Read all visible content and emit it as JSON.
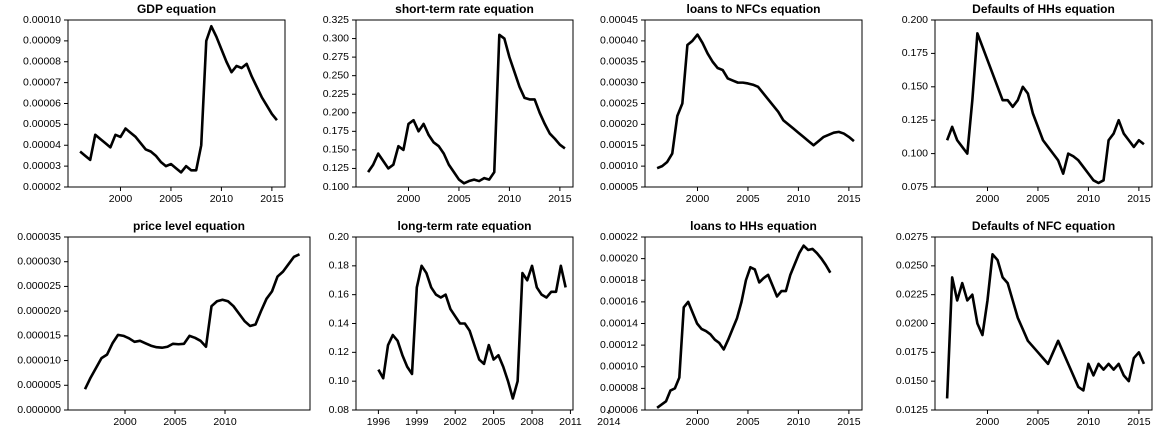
{
  "chart_data": [
    {
      "type": "line",
      "title": "GDP equation",
      "x": [
        1996,
        1996.5,
        1997,
        1997.5,
        1998,
        1998.5,
        1999,
        1999.5,
        2000,
        2000.5,
        2001,
        2001.5,
        2002,
        2002.5,
        2003,
        2003.5,
        2004,
        2004.5,
        2005,
        2005.5,
        2006,
        2006.5,
        2007,
        2007.5,
        2008,
        2008.5,
        2009,
        2009.5,
        2010,
        2010.5,
        2011,
        2011.5,
        2012,
        2012.5,
        2013,
        2013.5,
        2014,
        2014.5,
        2015,
        2015.5
      ],
      "values": [
        3.7e-05,
        3.5e-05,
        3.3e-05,
        4.5e-05,
        4.3e-05,
        4.1e-05,
        3.9e-05,
        4.5e-05,
        4.4e-05,
        4.8e-05,
        4.6e-05,
        4.4e-05,
        4.1e-05,
        3.8e-05,
        3.7e-05,
        3.5e-05,
        3.2e-05,
        3e-05,
        3.1e-05,
        2.9e-05,
        2.7e-05,
        3e-05,
        2.8e-05,
        2.8e-05,
        4e-05,
        9e-05,
        9.7e-05,
        9.2e-05,
        8.6e-05,
        8e-05,
        7.5e-05,
        7.8e-05,
        7.7e-05,
        7.9e-05,
        7.3e-05,
        6.8e-05,
        6.3e-05,
        5.9e-05,
        5.5e-05,
        5.2e-05
      ],
      "color": "#000000",
      "xlim": [
        1994.8,
        2016.3
      ],
      "xticks": [
        2000,
        2005,
        2010,
        2015
      ],
      "ylim": [
        2e-05,
        0.0001
      ],
      "yticks": [
        2e-05,
        3e-05,
        4e-05,
        5e-05,
        6e-05,
        7e-05,
        8e-05,
        9e-05,
        {
          "value": 0.0001,
          "label": "0.00010"
        }
      ]
    },
    {
      "type": "line",
      "title": "short-term rate equation",
      "x": [
        1996,
        1996.5,
        1997,
        1997.5,
        1998,
        1998.5,
        1999,
        1999.5,
        2000,
        2000.5,
        2001,
        2001.5,
        2002,
        2002.5,
        2003,
        2003.5,
        2004,
        2004.5,
        2005,
        2005.5,
        2006,
        2006.5,
        2007,
        2007.5,
        2008,
        2008.5,
        2009,
        2009.5,
        2010,
        2010.5,
        2011,
        2011.5,
        2012,
        2012.5,
        2013,
        2013.5,
        2014,
        2014.5,
        2015,
        2015.5
      ],
      "values": [
        0.12,
        0.13,
        0.145,
        0.135,
        0.125,
        0.13,
        0.155,
        0.15,
        0.185,
        0.19,
        0.175,
        0.185,
        0.17,
        0.16,
        0.155,
        0.145,
        0.13,
        0.12,
        0.11,
        0.105,
        0.108,
        0.11,
        0.108,
        0.112,
        0.11,
        0.12,
        0.305,
        0.3,
        0.275,
        0.255,
        0.235,
        0.22,
        0.218,
        0.218,
        0.2,
        0.185,
        0.172,
        0.165,
        0.157,
        0.152
      ],
      "color": "#000000",
      "xlim": [
        1994.8,
        2016.3
      ],
      "xticks": [
        2000,
        2005,
        2010,
        2015
      ],
      "ylim": [
        0.1,
        0.325
      ],
      "yticks": [
        {
          "value": 0.1,
          "label": "0.100"
        },
        0.125,
        {
          "value": 0.15,
          "label": "0.150"
        },
        0.175,
        {
          "value": 0.2,
          "label": "0.200"
        },
        0.225,
        {
          "value": 0.25,
          "label": "0.250"
        },
        0.275,
        {
          "value": 0.3,
          "label": "0.300"
        },
        0.325
      ]
    },
    {
      "type": "line",
      "title": "loans to NFCs equation",
      "x": [
        1996,
        1996.5,
        1997,
        1997.5,
        1998,
        1998.5,
        1999,
        1999.5,
        2000,
        2000.5,
        2001,
        2001.5,
        2002,
        2002.5,
        2003,
        2003.5,
        2004,
        2004.5,
        2005,
        2005.5,
        2006,
        2006.5,
        2007,
        2007.5,
        2008,
        2008.5,
        2009,
        2009.5,
        2010,
        2010.5,
        2011,
        2011.5,
        2012,
        2012.5,
        2013,
        2013.5,
        2014,
        2014.5,
        2015,
        2015.5
      ],
      "values": [
        9.5e-05,
        0.0001,
        0.00011,
        0.00013,
        0.00022,
        0.00025,
        0.00039,
        0.0004,
        0.000415,
        0.000395,
        0.00037,
        0.00035,
        0.000335,
        0.00033,
        0.00031,
        0.000305,
        0.0003,
        0.0003,
        0.000298,
        0.000295,
        0.00029,
        0.000275,
        0.00026,
        0.000245,
        0.00023,
        0.00021,
        0.0002,
        0.00019,
        0.00018,
        0.00017,
        0.00016,
        0.00015,
        0.00016,
        0.00017,
        0.000175,
        0.00018,
        0.000182,
        0.000178,
        0.00017,
        0.00016
      ],
      "color": "#000000",
      "xlim": [
        1994.8,
        2016.3
      ],
      "xticks": [
        2000,
        2005,
        2010,
        2015
      ],
      "ylim": [
        5e-05,
        0.00045
      ],
      "yticks": [
        5e-05,
        {
          "value": 0.0001,
          "label": "0.00010"
        },
        0.00015,
        {
          "value": 0.0002,
          "label": "0.00020"
        },
        0.00025,
        {
          "value": 0.0003,
          "label": "0.00030"
        },
        0.00035,
        {
          "value": 0.0004,
          "label": "0.00040"
        },
        0.00045
      ]
    },
    {
      "type": "line",
      "title": "Defaults of HHs equation",
      "x": [
        1996,
        1996.5,
        1997,
        1997.5,
        1998,
        1998.5,
        1999,
        1999.5,
        2000,
        2000.5,
        2001,
        2001.5,
        2002,
        2002.5,
        2003,
        2003.5,
        2004,
        2004.5,
        2005,
        2005.5,
        2006,
        2006.5,
        2007,
        2007.5,
        2008,
        2008.5,
        2009,
        2009.5,
        2010,
        2010.5,
        2011,
        2011.5,
        2012,
        2012.5,
        2013,
        2013.5,
        2014,
        2014.5,
        2015,
        2015.5
      ],
      "values": [
        0.11,
        0.12,
        0.11,
        0.105,
        0.1,
        0.14,
        0.19,
        0.18,
        0.17,
        0.16,
        0.15,
        0.14,
        0.14,
        0.135,
        0.14,
        0.15,
        0.145,
        0.13,
        0.12,
        0.11,
        0.105,
        0.1,
        0.095,
        0.085,
        0.1,
        0.098,
        0.095,
        0.09,
        0.085,
        0.08,
        0.078,
        0.08,
        0.11,
        0.115,
        0.125,
        0.115,
        0.11,
        0.105,
        0.11,
        0.107
      ],
      "color": "#000000",
      "xlim": [
        1994.8,
        2016.3
      ],
      "xticks": [
        2000,
        2005,
        2010,
        2015
      ],
      "ylim": [
        0.075,
        0.2
      ],
      "yticks": [
        0.075,
        {
          "value": 0.1,
          "label": "0.100"
        },
        0.125,
        {
          "value": 0.15,
          "label": "0.150"
        },
        0.175,
        {
          "value": 0.2,
          "label": "0.200"
        }
      ]
    },
    {
      "type": "line",
      "title": "price level equation",
      "x": [
        1996,
        1996.55,
        1997.1,
        1997.65,
        1998.2,
        1998.75,
        1999.3,
        1999.85,
        2000.4,
        2000.95,
        2001.5,
        2002.05,
        2002.6,
        2003.15,
        2003.7,
        2004.25,
        2004.8,
        2005.35,
        2005.9,
        2006.45,
        2007,
        2007.55,
        2008.1,
        2008.65,
        2009.2,
        2009.75,
        2010.3,
        2010.85,
        2011.4,
        2011.95,
        2012.5,
        2013.05,
        2013.6,
        2014.15,
        2014.7,
        2015.25,
        2015.8,
        2016.35,
        2016.9,
        2017.45
      ],
      "values": [
        4.2e-06,
        6.5e-06,
        8.5e-06,
        1.05e-05,
        1.12e-05,
        1.35e-05,
        1.52e-05,
        1.5e-05,
        1.45e-05,
        1.38e-05,
        1.4e-05,
        1.35e-05,
        1.3e-05,
        1.27e-05,
        1.26e-05,
        1.28e-05,
        1.34e-05,
        1.33e-05,
        1.34e-05,
        1.5e-05,
        1.46e-05,
        1.4e-05,
        1.28e-05,
        2.1e-05,
        2.2e-05,
        2.23e-05,
        2.2e-05,
        2.1e-05,
        1.95e-05,
        1.8e-05,
        1.7e-05,
        1.73e-05,
        2e-05,
        2.25e-05,
        2.4e-05,
        2.7e-05,
        2.8e-05,
        2.95e-05,
        3.1e-05,
        3.15e-05
      ],
      "color": "#000000",
      "xlim": [
        1994.3,
        2018.5
      ],
      "xticks": [
        2000,
        2005,
        2010
      ],
      "ylim": [
        0,
        3.5e-05
      ],
      "yticks": [
        {
          "value": 0,
          "label": "0.000000"
        },
        5e-06,
        {
          "value": 1e-05,
          "label": "0.000010"
        },
        1.5e-05,
        {
          "value": 2e-05,
          "label": "0.000020"
        },
        2.5e-05,
        {
          "value": 3e-05,
          "label": "0.000030"
        },
        3.5e-05
      ]
    },
    {
      "type": "line",
      "title": "long-term rate equation",
      "x": [
        1996,
        1996.375,
        1996.75,
        1997.125,
        1997.5,
        1997.875,
        1998.25,
        1998.625,
        1999,
        1999.375,
        1999.75,
        2000.125,
        2000.5,
        2000.875,
        2001.25,
        2001.625,
        2002,
        2002.375,
        2002.75,
        2003.125,
        2003.5,
        2003.875,
        2004.25,
        2004.625,
        2005,
        2005.375,
        2005.75,
        2006.125,
        2006.5,
        2006.875,
        2007.25,
        2007.625,
        2008,
        2008.375,
        2008.75,
        2009.125,
        2009.5,
        2009.875,
        2010.25,
        2010.625
      ],
      "values": [
        0.108,
        0.102,
        0.125,
        0.132,
        0.128,
        0.118,
        0.11,
        0.105,
        0.165,
        0.18,
        0.175,
        0.165,
        0.16,
        0.158,
        0.16,
        0.15,
        0.145,
        0.14,
        0.14,
        0.135,
        0.125,
        0.115,
        0.112,
        0.125,
        0.115,
        0.118,
        0.11,
        0.1,
        0.088,
        0.1,
        0.175,
        0.17,
        0.18,
        0.165,
        0.16,
        0.158,
        0.162,
        0.162,
        0.18,
        0.165
      ],
      "color": "#000000",
      "xlim": [
        1994.25,
        2011.2
      ],
      "xticks": [
        1996,
        1999,
        2002,
        2005,
        2008,
        2011,
        2014
      ],
      "ylim": [
        0.08,
        0.2
      ],
      "yticks": [
        0.08,
        {
          "value": 0.1,
          "label": "0.10"
        },
        0.12,
        0.14,
        0.16,
        0.18,
        {
          "value": 0.2,
          "label": "0.20"
        }
      ]
    },
    {
      "type": "line",
      "title": "loans to HHs equation",
      "x": [
        1996,
        1996.44,
        1996.88,
        1997.32,
        1997.76,
        1998.2,
        1998.64,
        1999.08,
        1999.52,
        1999.96,
        2000.4,
        2000.84,
        2001.28,
        2001.72,
        2002.16,
        2002.6,
        2003.04,
        2003.48,
        2003.92,
        2004.36,
        2004.8,
        2005.24,
        2005.68,
        2006.12,
        2006.56,
        2007,
        2007.44,
        2007.88,
        2008.32,
        2008.76,
        2009.2,
        2009.64,
        2010.08,
        2010.52,
        2010.96,
        2011.4,
        2011.84,
        2012.28,
        2012.72,
        2013.16
      ],
      "values": [
        6.2e-05,
        6.5e-05,
        6.8e-05,
        7.8e-05,
        8e-05,
        9e-05,
        0.000155,
        0.00016,
        0.00015,
        0.00014,
        0.000135,
        0.000133,
        0.00013,
        0.000125,
        0.000122,
        0.000116,
        0.000125,
        0.000135,
        0.000145,
        0.00016,
        0.00018,
        0.000192,
        0.00019,
        0.000178,
        0.000182,
        0.000185,
        0.000175,
        0.000165,
        0.00017,
        0.00017,
        0.000185,
        0.000195,
        0.000205,
        0.000212,
        0.000208,
        0.000209,
        0.000205,
        0.0002,
        0.000194,
        0.000187
      ],
      "color": "#000000",
      "xlim": [
        1994.8,
        2016.3
      ],
      "xticks": [
        2000,
        2005,
        2010,
        2015
      ],
      "ylim": [
        6e-05,
        0.00022
      ],
      "yticks": [
        6e-05,
        8e-05,
        {
          "value": 0.0001,
          "label": "0.00010"
        },
        0.00012,
        0.00014,
        0.00016,
        0.00018,
        {
          "value": 0.0002,
          "label": "0.00020"
        },
        0.00022
      ]
    },
    {
      "type": "line",
      "title": "Defaults of NFC equation",
      "x": [
        1996,
        1996.5,
        1997,
        1997.5,
        1998,
        1998.5,
        1999,
        1999.5,
        2000,
        2000.5,
        2001,
        2001.5,
        2002,
        2002.5,
        2003,
        2003.5,
        2004,
        2004.5,
        2005,
        2005.5,
        2006,
        2006.5,
        2007,
        2007.5,
        2008,
        2008.5,
        2009,
        2009.5,
        2010,
        2010.5,
        2011,
        2011.5,
        2012,
        2012.5,
        2013,
        2013.5,
        2014,
        2014.5,
        2015,
        2015.5
      ],
      "values": [
        0.0135,
        0.024,
        0.022,
        0.0235,
        0.022,
        0.0225,
        0.02,
        0.019,
        0.022,
        0.026,
        0.0255,
        0.024,
        0.0235,
        0.022,
        0.0205,
        0.0195,
        0.0185,
        0.018,
        0.0175,
        0.017,
        0.0165,
        0.0175,
        0.0185,
        0.0175,
        0.0165,
        0.0155,
        0.0145,
        0.0142,
        0.0165,
        0.0155,
        0.0165,
        0.016,
        0.0165,
        0.016,
        0.0165,
        0.0155,
        0.015,
        0.017,
        0.0175,
        0.0165
      ],
      "color": "#000000",
      "xlim": [
        1994.8,
        2016.3
      ],
      "xticks": [
        2000,
        2005,
        2010,
        2015
      ],
      "ylim": [
        0.0125,
        0.0275
      ],
      "yticks": [
        0.0125,
        {
          "value": 0.015,
          "label": "0.0150"
        },
        0.0175,
        {
          "value": 0.02,
          "label": "0.0200"
        },
        0.0225,
        {
          "value": 0.025,
          "label": "0.0250"
        },
        0.0275
      ]
    }
  ]
}
